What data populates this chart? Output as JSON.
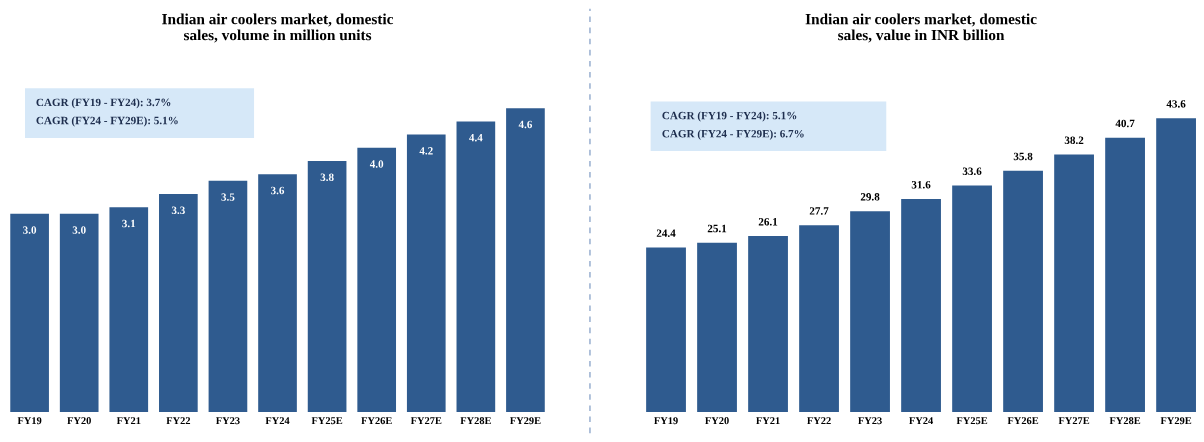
{
  "chart_data": [
    {
      "type": "bar",
      "title": "Indian air coolers market, domestic\nsales, volume in million units",
      "categories": [
        "FY19",
        "FY20",
        "FY21",
        "FY22",
        "FY23",
        "FY24",
        "FY25E",
        "FY26E",
        "FY27E",
        "FY28E",
        "FY29E"
      ],
      "values": [
        3.0,
        3.0,
        3.1,
        3.3,
        3.5,
        3.6,
        3.8,
        4.0,
        4.2,
        4.4,
        4.6
      ],
      "value_labels": [
        "3.0",
        "3.0",
        "3.1",
        "3.3",
        "3.5",
        "3.6",
        "3.8",
        "4.0",
        "4.2",
        "4.4",
        "4.6"
      ],
      "color": "#2f5b8f",
      "tick_labels": "x",
      "grid": false,
      "legend": false,
      "annotations": [
        "CAGR (FY19 - FY24): 3.7%",
        "CAGR (FY24 - FY29E): 5.1%"
      ]
    },
    {
      "type": "bar",
      "title": "Indian air coolers market, domestic\nsales, value in INR billion",
      "categories": [
        "FY19",
        "FY20",
        "FY21",
        "FY22",
        "FY23",
        "FY24",
        "FY25E",
        "FY26E",
        "FY27E",
        "FY28E",
        "FY29E"
      ],
      "values": [
        24.4,
        25.1,
        26.1,
        27.7,
        29.8,
        31.6,
        33.6,
        35.8,
        38.2,
        40.7,
        43.6
      ],
      "value_labels": [
        "24.4",
        "25.1",
        "26.1",
        "27.7",
        "29.8",
        "31.6",
        "33.6",
        "35.8",
        "38.2",
        "40.7",
        "43.6"
      ],
      "color": "#2f5b8f",
      "tick_labels": "x",
      "grid": false,
      "legend": false,
      "annotations": [
        "CAGR (FY19 - FY24): 5.1%",
        "CAGR (FY24 - FY29E): 6.7%"
      ]
    }
  ]
}
